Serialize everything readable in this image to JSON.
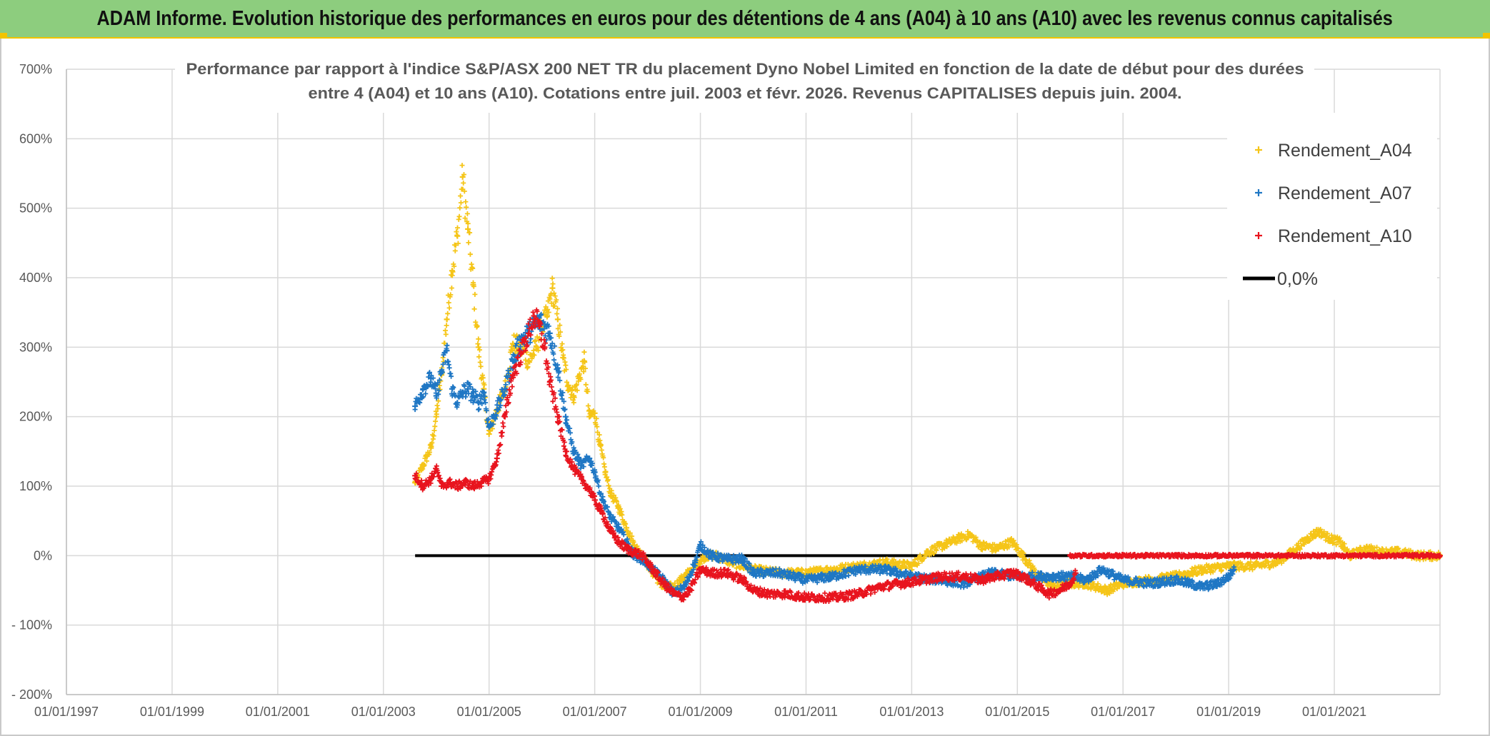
{
  "header": {
    "banner": "ADAM Informe. Evolution historique des performances en euros pour des détentions de 4 ans (A04) à 10 ans (A10) avec les revenus connus capitalisés",
    "accent_color": "#8dcd7e"
  },
  "chart_data": {
    "type": "scatter",
    "title_lines": [
      "Performance par rapport à l'indice S&P/ASX 200 NET TR  du placement Dyno Nobel Limited en fonction de la date de début pour des durées",
      "entre 4 (A04) et 10 ans (A10). Cotations entre juil. 2003 et févr. 2026. Revenus CAPITALISES depuis juin. 2004."
    ],
    "xlabel": "",
    "ylabel": "",
    "xlim": [
      1997.0,
      2023.0
    ],
    "ylim": [
      -200,
      700
    ],
    "grid": true,
    "legend_position": "top-right",
    "y_ticks": [
      {
        "value": 700,
        "label": "700%"
      },
      {
        "value": 600,
        "label": "600%"
      },
      {
        "value": 500,
        "label": "500%"
      },
      {
        "value": 400,
        "label": "400%"
      },
      {
        "value": 300,
        "label": "300%"
      },
      {
        "value": 200,
        "label": "200%"
      },
      {
        "value": 100,
        "label": "100%"
      },
      {
        "value": 0,
        "label": "0%"
      },
      {
        "value": -100,
        "label": "- 100%"
      },
      {
        "value": -200,
        "label": "- 200%"
      }
    ],
    "x_ticks": [
      {
        "value": 1997.0,
        "label": "01/01/1997"
      },
      {
        "value": 1999.0,
        "label": "01/01/1999"
      },
      {
        "value": 2001.0,
        "label": "01/01/2001"
      },
      {
        "value": 2003.0,
        "label": "01/01/2003"
      },
      {
        "value": 2005.0,
        "label": "01/01/2005"
      },
      {
        "value": 2007.0,
        "label": "01/01/2007"
      },
      {
        "value": 2009.0,
        "label": "01/01/2009"
      },
      {
        "value": 2011.0,
        "label": "01/01/2011"
      },
      {
        "value": 2013.0,
        "label": "01/01/2013"
      },
      {
        "value": 2015.0,
        "label": "01/01/2015"
      },
      {
        "value": 2017.0,
        "label": "01/01/2017"
      },
      {
        "value": 2019.0,
        "label": "01/01/2019"
      },
      {
        "value": 2021.0,
        "label": "01/01/2021"
      }
    ],
    "legend": [
      {
        "label": "Rendement_A04",
        "color": "#f5c518",
        "kind": "marker"
      },
      {
        "label": "Rendement_A07",
        "color": "#1f77c4",
        "kind": "marker"
      },
      {
        "label": "Rendement_A10",
        "color": "#e8141e",
        "kind": "marker"
      },
      {
        "label": "0,0%",
        "color": "#000000",
        "kind": "line"
      }
    ],
    "series": [
      {
        "name": "Rendement_A04",
        "color": "#f5c518",
        "x": [
          2003.6,
          2003.75,
          2003.9,
          2004.0,
          2004.1,
          2004.2,
          2004.3,
          2004.4,
          2004.5,
          2004.6,
          2004.7,
          2004.8,
          2004.9,
          2005.0,
          2005.15,
          2005.3,
          2005.45,
          2005.6,
          2005.75,
          2005.9,
          2006.0,
          2006.1,
          2006.2,
          2006.3,
          2006.4,
          2006.5,
          2006.6,
          2006.7,
          2006.8,
          2006.9,
          2007.0,
          2007.1,
          2007.2,
          2007.3,
          2007.45,
          2007.6,
          2007.75,
          2007.9,
          2008.1,
          2008.3,
          2008.5,
          2008.7,
          2008.9,
          2009.1,
          2009.3,
          2009.6,
          2010.0,
          2010.5,
          2011.0,
          2011.5,
          2012.0,
          2012.5,
          2013.0,
          2013.3,
          2013.6,
          2013.9,
          2014.1,
          2014.3,
          2014.6,
          2014.9,
          2015.1,
          2015.4,
          2015.7,
          2016.0,
          2016.3,
          2016.7,
          2017.0,
          2017.5,
          2018.0,
          2018.5,
          2019.0,
          2019.5,
          2019.9,
          2020.2,
          2020.5,
          2020.7,
          2020.9,
          2021.1,
          2021.3,
          2021.6,
          2021.9,
          2022.2,
          2022.6,
          2023.0
        ],
        "values": [
          105,
          130,
          155,
          200,
          260,
          340,
          410,
          460,
          545,
          470,
          390,
          300,
          240,
          175,
          210,
          240,
          305,
          300,
          280,
          300,
          330,
          345,
          385,
          340,
          285,
          245,
          230,
          255,
          280,
          200,
          205,
          160,
          120,
          90,
          70,
          40,
          15,
          0,
          -25,
          -45,
          -45,
          -30,
          -15,
          0,
          0,
          -10,
          -20,
          -25,
          -25,
          -20,
          -15,
          -10,
          -15,
          5,
          15,
          25,
          30,
          15,
          10,
          20,
          0,
          -30,
          -45,
          -40,
          -40,
          -50,
          -40,
          -35,
          -30,
          -20,
          -15,
          -15,
          -10,
          5,
          25,
          35,
          25,
          20,
          0,
          10,
          5,
          5,
          0,
          0
        ]
      },
      {
        "name": "Rendement_A07",
        "color": "#1f77c4",
        "x": [
          2003.6,
          2003.75,
          2003.9,
          2004.0,
          2004.1,
          2004.2,
          2004.3,
          2004.4,
          2004.5,
          2004.6,
          2004.7,
          2004.8,
          2004.9,
          2005.0,
          2005.15,
          2005.3,
          2005.45,
          2005.6,
          2005.75,
          2005.9,
          2006.0,
          2006.15,
          2006.3,
          2006.45,
          2006.6,
          2006.75,
          2006.9,
          2007.0,
          2007.15,
          2007.3,
          2007.45,
          2007.6,
          2007.75,
          2007.9,
          2008.1,
          2008.3,
          2008.5,
          2008.7,
          2008.9,
          2009.0,
          2009.2,
          2009.5,
          2009.8,
          2010.0,
          2010.5,
          2011.0,
          2011.5,
          2012.0,
          2012.5,
          2013.0,
          2013.5,
          2014.0,
          2014.5,
          2015.0,
          2015.5,
          2016.0,
          2016.3,
          2016.6,
          2017.0,
          2017.5,
          2018.0,
          2018.5,
          2018.8,
          2019.0,
          2019.1
        ],
        "values": [
          215,
          240,
          255,
          230,
          265,
          295,
          240,
          220,
          235,
          240,
          230,
          220,
          235,
          185,
          210,
          240,
          280,
          310,
          320,
          335,
          335,
          320,
          270,
          200,
          150,
          130,
          140,
          120,
          80,
          55,
          40,
          20,
          0,
          -5,
          -20,
          -35,
          -55,
          -45,
          -10,
          15,
          0,
          -5,
          -5,
          -25,
          -25,
          -35,
          -30,
          -20,
          -20,
          -30,
          -35,
          -40,
          -25,
          -30,
          -30,
          -30,
          -35,
          -20,
          -35,
          -40,
          -35,
          -45,
          -40,
          -30,
          -20
        ]
      },
      {
        "name": "Rendement_A10",
        "color": "#e8141e",
        "x": [
          2003.6,
          2003.75,
          2003.9,
          2004.0,
          2004.1,
          2004.25,
          2004.4,
          2004.55,
          2004.7,
          2004.85,
          2005.0,
          2005.15,
          2005.3,
          2005.45,
          2005.6,
          2005.75,
          2005.85,
          2005.95,
          2006.05,
          2006.15,
          2006.3,
          2006.45,
          2006.6,
          2006.75,
          2006.9,
          2007.0,
          2007.15,
          2007.3,
          2007.45,
          2007.6,
          2007.75,
          2007.9,
          2008.1,
          2008.3,
          2008.5,
          2008.65,
          2008.8,
          2009.0,
          2009.2,
          2009.5,
          2009.8,
          2010.0,
          2010.3,
          2010.6,
          2011.0,
          2011.3,
          2011.6,
          2012.0,
          2012.4,
          2012.8,
          2013.2,
          2013.6,
          2014.0,
          2014.3,
          2014.6,
          2014.9,
          2015.1,
          2015.4,
          2015.6,
          2015.8,
          2016.0,
          2016.1
        ],
        "values": [
          115,
          100,
          110,
          125,
          100,
          105,
          100,
          105,
          100,
          105,
          110,
          140,
          200,
          260,
          290,
          320,
          345,
          330,
          300,
          250,
          200,
          150,
          125,
          110,
          95,
          80,
          60,
          35,
          20,
          10,
          5,
          0,
          -20,
          -40,
          -55,
          -60,
          -50,
          -20,
          -25,
          -25,
          -35,
          -50,
          -55,
          -55,
          -60,
          -60,
          -60,
          -55,
          -45,
          -40,
          -35,
          -30,
          -30,
          -35,
          -30,
          -25,
          -30,
          -45,
          -55,
          -50,
          -40,
          -25
        ]
      },
      {
        "name": "Rendement_A10_flat",
        "color": "#e8141e",
        "x": [
          2016.0,
          2016.5,
          2017.0,
          2017.5,
          2018.0,
          2018.5,
          2019.0,
          2019.5,
          2020.0,
          2020.5,
          2021.0,
          2021.5,
          2022.0,
          2022.5,
          2023.0
        ],
        "values": [
          0,
          0,
          0,
          0,
          0,
          0,
          0,
          0,
          0,
          0,
          0,
          0,
          0,
          0,
          0
        ]
      },
      {
        "name": "0,0%",
        "color": "#000000",
        "x": [
          2003.6,
          2023.0
        ],
        "values": [
          0,
          0
        ]
      }
    ]
  }
}
